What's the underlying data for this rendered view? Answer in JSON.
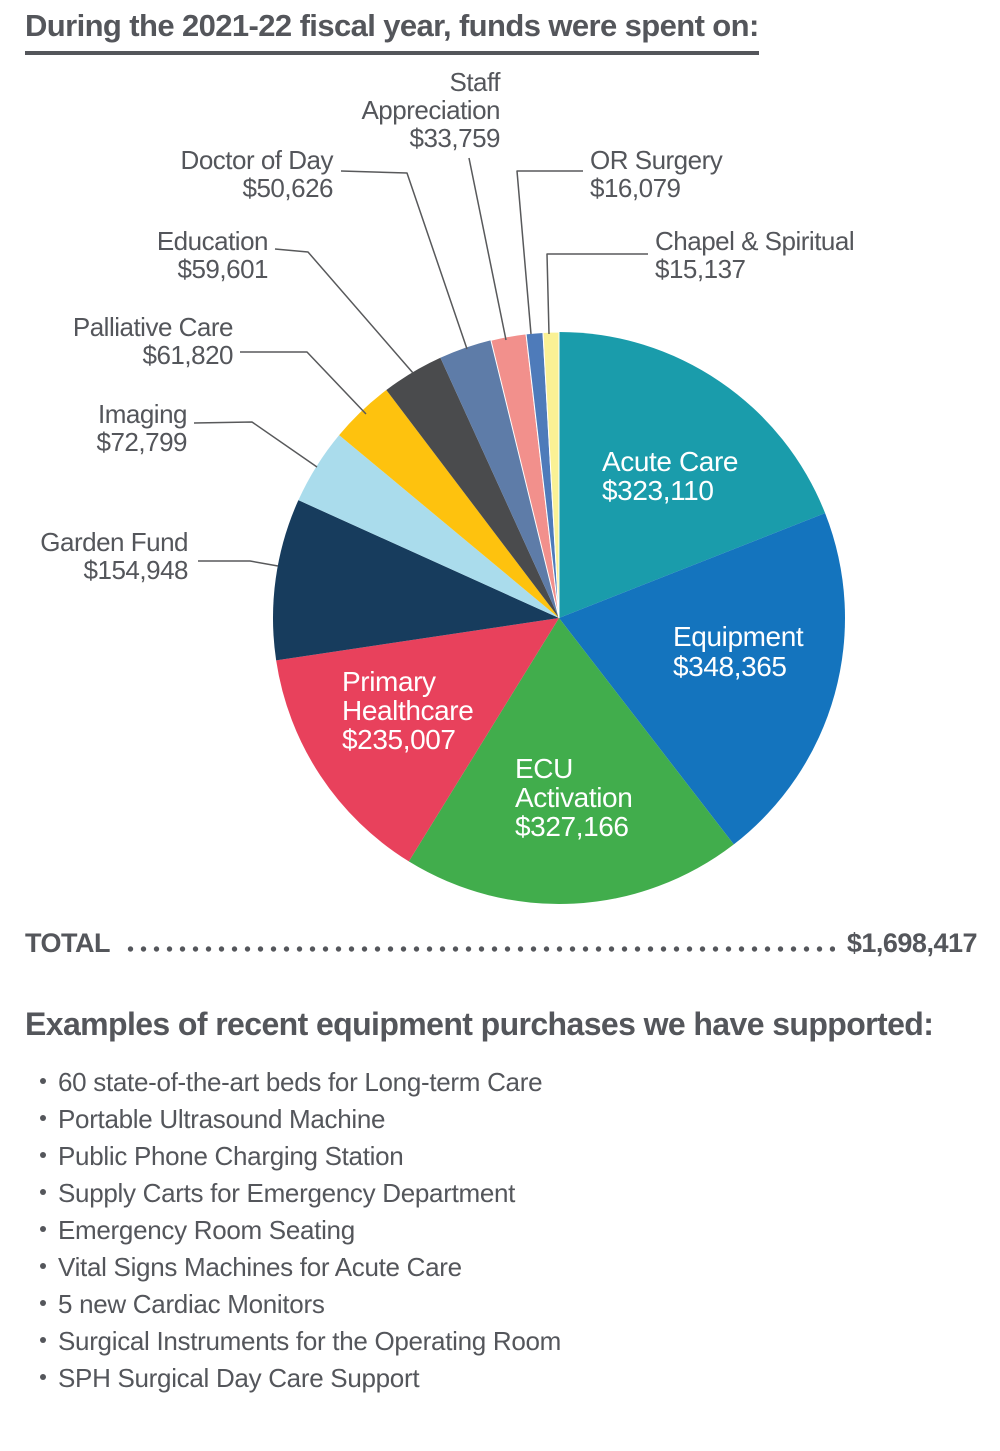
{
  "header": {
    "title": "During the 2021-22 fiscal year, funds were spent on:"
  },
  "total": {
    "label": "TOTAL",
    "value": "$1,698,417"
  },
  "examples": {
    "heading": "Examples of recent equipment purchases we have supported:",
    "items": [
      "60 state-of-the-art beds for Long-term Care",
      "Portable Ultrasound Machine",
      "Public Phone Charging Station",
      "Supply Carts for Emergency Department",
      "Emergency Room Seating",
      "Vital Signs Machines for Acute Care",
      "5 new Cardiac Monitors",
      "Surgical Instruments for the Operating Room",
      "SPH Surgical Day Care Support"
    ]
  },
  "chart_data": {
    "type": "pie",
    "title": "During the 2021-22 fiscal year, funds were spent on:",
    "total": 1698417,
    "total_display": "$1,698,417",
    "start_angle_deg": 0,
    "direction": "clockwise",
    "legend_position": "callout-labels",
    "segments": [
      {
        "label": "Acute Care",
        "value": 323110,
        "display": "$323,110",
        "color": "#1A9CAB",
        "label_placement": "inside"
      },
      {
        "label": "Equipment",
        "value": 348365,
        "display": "$348,365",
        "color": "#1474BE",
        "label_placement": "inside"
      },
      {
        "label": "ECU Activation",
        "value": 327166,
        "display": "$327,166",
        "color": "#41AD4C",
        "label_placement": "inside"
      },
      {
        "label": "Primary Healthcare",
        "value": 235007,
        "display": "$235,007",
        "color": "#E8415C",
        "label_placement": "inside"
      },
      {
        "label": "Garden Fund",
        "value": 154948,
        "display": "$154,948",
        "color": "#173C5D",
        "label_placement": "outside"
      },
      {
        "label": "Imaging",
        "value": 72799,
        "display": "$72,799",
        "color": "#AADCEC",
        "label_placement": "outside"
      },
      {
        "label": "Palliative Care",
        "value": 61820,
        "display": "$61,820",
        "color": "#FEC20E",
        "label_placement": "outside"
      },
      {
        "label": "Education",
        "value": 59601,
        "display": "$59,601",
        "color": "#4A4B4D",
        "label_placement": "outside"
      },
      {
        "label": "Doctor of Day",
        "value": 50626,
        "display": "$50,626",
        "color": "#5E7CA8",
        "label_placement": "outside"
      },
      {
        "label": "Staff Appreciation",
        "value": 33759,
        "display": "$33,759",
        "color": "#F2908C",
        "label_placement": "outside"
      },
      {
        "label": "OR Surgery",
        "value": 16079,
        "display": "$16,079",
        "color": "#4E7BBA",
        "label_placement": "outside"
      },
      {
        "label": "Chapel & Spiritual",
        "value": 15137,
        "display": "$15,137",
        "color": "#FAF195",
        "label_placement": "outside"
      }
    ],
    "colors": {
      "text": "#54565B",
      "leader_line": "#58595B",
      "background": "#FFFFFF"
    }
  }
}
